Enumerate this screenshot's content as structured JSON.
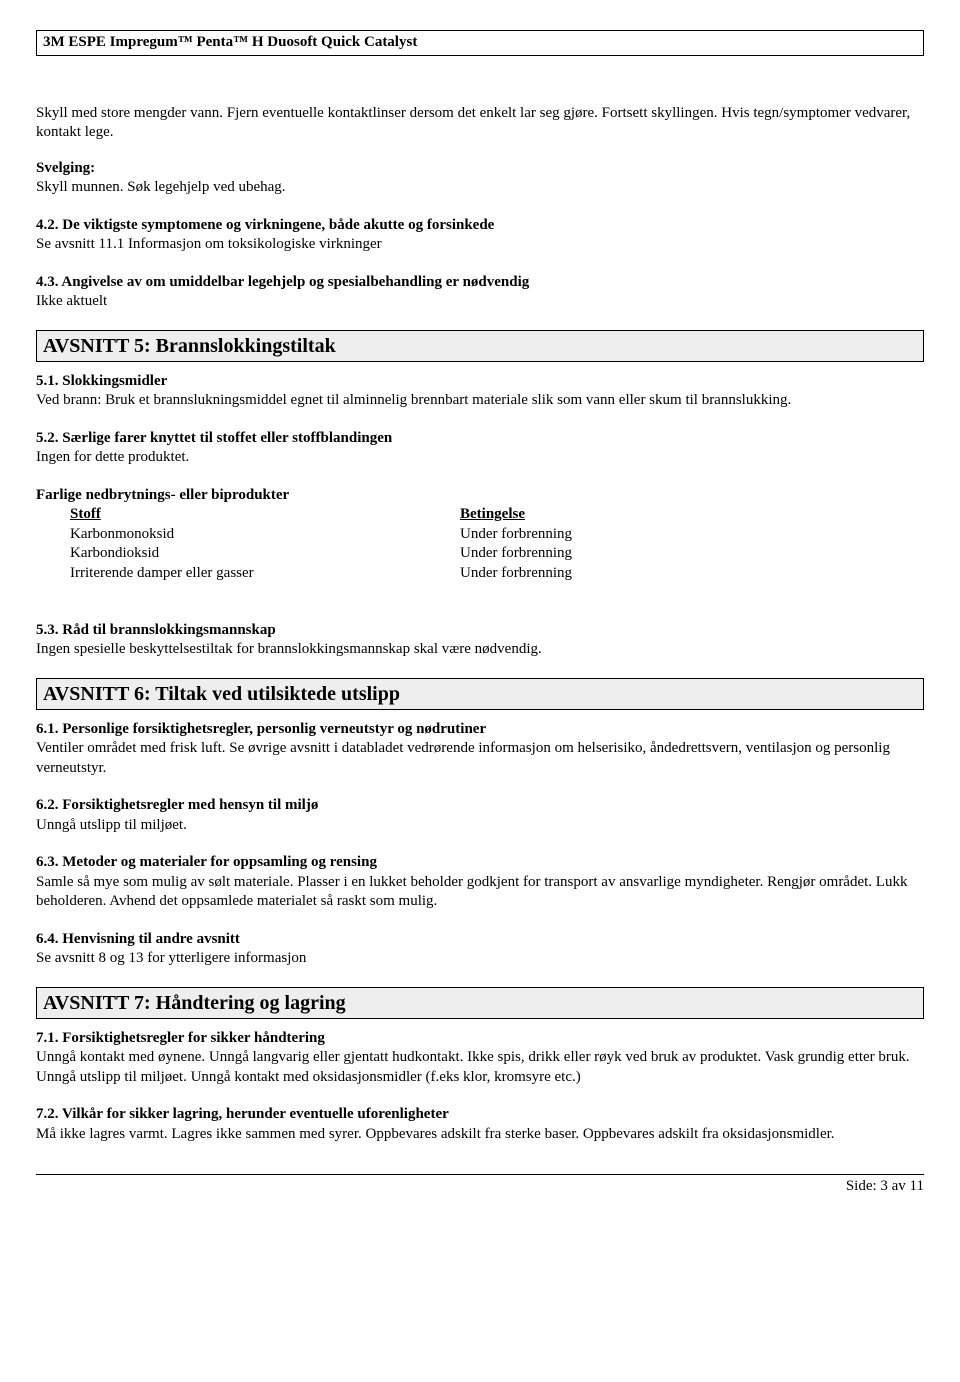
{
  "header": {
    "product_title": "3M ESPE Impregum™ Penta™ H Duosoft Quick Catalyst"
  },
  "intro": {
    "para1": "Skyll med store mengder vann. Fjern eventuelle kontaktlinser dersom det enkelt lar seg gjøre. Fortsett skyllingen. Hvis tegn/symptomer vedvarer, kontakt lege.",
    "svelging_label": "Svelging:",
    "svelging_text": "Skyll munnen. Søk legehjelp ved ubehag."
  },
  "section_4": {
    "h4_2_title": "4.2. De viktigste symptomene og virkningene, både akutte og forsinkede",
    "h4_2_text": "Se avsnitt 11.1 Informasjon om toksikologiske virkninger",
    "h4_3_title": "4.3. Angivelse av om umiddelbar legehjelp og spesialbehandling er nødvendig",
    "h4_3_text": "Ikke aktuelt"
  },
  "section_5": {
    "title": "AVSNITT 5: Brannslokkingstiltak",
    "h5_1_title": "5.1. Slokkingsmidler",
    "h5_1_text": "Ved brann: Bruk et brannslukningsmiddel egnet til alminnelig brennbart materiale slik som vann eller skum til brannslukking.",
    "h5_2_title": "5.2. Særlige farer knyttet til stoffet eller stoffblandingen",
    "h5_2_text": "Ingen for dette produktet.",
    "byprod_heading": "Farlige nedbrytnings- eller biprodukter",
    "byprod_col1": "Stoff",
    "byprod_col2": "Betingelse",
    "byprod_rows": [
      {
        "substance": "Karbonmonoksid",
        "condition": "Under forbrenning"
      },
      {
        "substance": "Karbondioksid",
        "condition": "Under forbrenning"
      },
      {
        "substance": "Irriterende damper eller gasser",
        "condition": "Under forbrenning"
      }
    ],
    "h5_3_title": "5.3. Råd til brannslokkingsmannskap",
    "h5_3_text": "Ingen spesielle beskyttelsestiltak for brannslokkingsmannskap skal være nødvendig."
  },
  "section_6": {
    "title": "AVSNITT 6: Tiltak ved utilsiktede utslipp",
    "h6_1_title": "6.1. Personlige forsiktighetsregler, personlig verneutstyr og nødrutiner",
    "h6_1_text": "Ventiler området med frisk luft.  Se øvrige avsnitt i databladet vedrørende informasjon om helserisiko, åndedrettsvern, ventilasjon og personlig verneutstyr.",
    "h6_2_title": "6.2. Forsiktighetsregler med hensyn til miljø",
    "h6_2_text": "Unngå utslipp til miljøet.",
    "h6_3_title": "6.3. Metoder og materialer for oppsamling og rensing",
    "h6_3_text": "Samle så mye som mulig av sølt materiale.  Plasser i en lukket beholder godkjent for transport av ansvarlige myndigheter.  Rengjør området.  Lukk beholderen.  Avhend det oppsamlede materialet så raskt som mulig.",
    "h6_4_title": "6.4. Henvisning til andre avsnitt",
    "h6_4_text": "Se avsnitt 8 og 13 for ytterligere informasjon"
  },
  "section_7": {
    "title": "AVSNITT 7: Håndtering og lagring",
    "h7_1_title": "7.1. Forsiktighetsregler for sikker håndtering",
    "h7_1_text": "Unngå kontakt med øynene.  Unngå langvarig eller gjentatt hudkontakt.  Ikke spis, drikk eller røyk ved bruk av produktet.  Vask grundig etter bruk.  Unngå utslipp til miljøet.  Unngå kontakt med oksidasjonsmidler (f.eks klor, kromsyre etc.)",
    "h7_2_title": "7.2. Vilkår for sikker lagring, herunder eventuelle uforenligheter",
    "h7_2_text": "Må ikke lagres varmt.  Lagres ikke sammen med syrer.  Oppbevares adskilt fra sterke baser.  Oppbevares adskilt fra oksidasjonsmidler."
  },
  "footer": {
    "page_label": "Side: 3 av  11"
  }
}
